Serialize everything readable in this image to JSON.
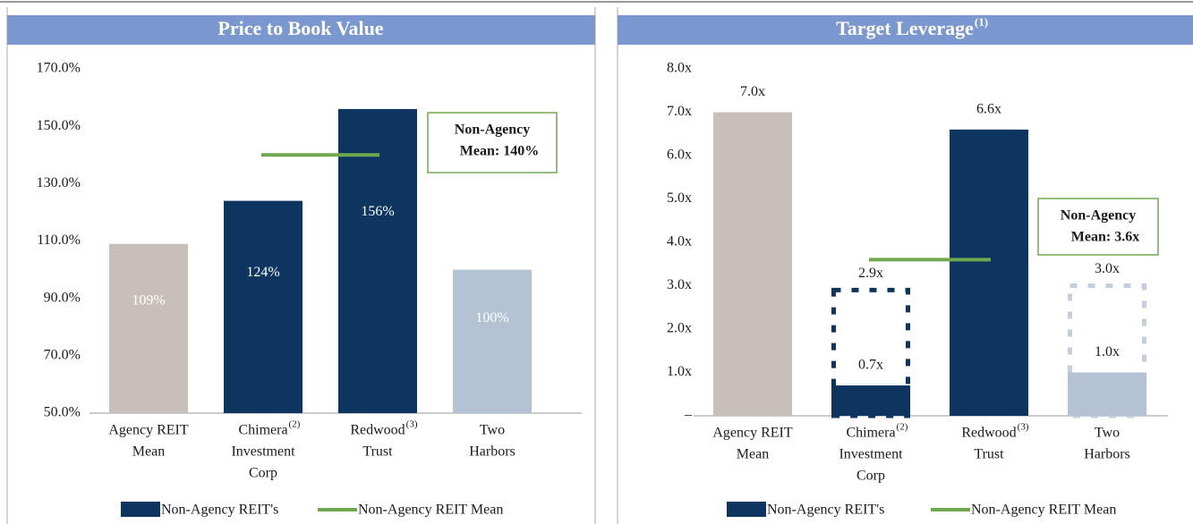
{
  "chart_data": [
    {
      "type": "bar",
      "title": "Price to Book Value",
      "categories": [
        [
          "Agency REIT",
          "Mean"
        ],
        [
          "Chimera",
          "Investment",
          "Corp"
        ],
        [
          "Redwood",
          "Trust"
        ],
        [
          "Two",
          "Harbors"
        ]
      ],
      "category_notes": [
        null,
        "(2)",
        "(3)",
        null
      ],
      "values": [
        109,
        124,
        156,
        100
      ],
      "value_labels": [
        "109%",
        "124%",
        "156%",
        "100%"
      ],
      "value_label_position": "inside",
      "colors": [
        "#c8bfba",
        "#0d3560",
        "#0d3560",
        "#b3c3d4"
      ],
      "mean": 140,
      "mean_color": "#70a850",
      "annotation": [
        "Non-Agency",
        "Mean: 140%"
      ],
      "ylim": [
        50,
        170
      ],
      "yticks": [
        {
          "value": 50,
          "label": "50.0%"
        },
        {
          "value": 70,
          "label": "70.0%"
        },
        {
          "value": 90,
          "label": "90.0%"
        },
        {
          "value": 110,
          "label": "110.0%"
        },
        {
          "value": 130,
          "label": "130.0%"
        },
        {
          "value": 150,
          "label": "150.0%"
        },
        {
          "value": 170,
          "label": "170.0%"
        }
      ],
      "legend": [
        {
          "name": "Non-Agency REIT's",
          "color": "#0d3560",
          "shape": "rect"
        },
        {
          "name": "Non-Agency REIT Mean",
          "color": "#70a850",
          "shape": "line"
        }
      ]
    },
    {
      "type": "bar",
      "title": "Target Leverage",
      "title_note": "(1)",
      "categories": [
        [
          "Agency REIT",
          "Mean"
        ],
        [
          "Chimera",
          "Investment",
          "Corp"
        ],
        [
          "Redwood",
          "Trust"
        ],
        [
          "Two",
          "Harbors"
        ]
      ],
      "category_notes": [
        null,
        "(2)",
        "(3)",
        null
      ],
      "values": [
        7.0,
        0.7,
        6.6,
        1.0
      ],
      "value_labels": [
        "7.0x",
        "0.7x",
        "6.6x",
        "1.0x"
      ],
      "value_label_position": "above",
      "colors": [
        "#c8bfba",
        "#0d3560",
        "#0d3560",
        "#b3c3d4"
      ],
      "high_values": [
        null,
        2.9,
        null,
        3.0
      ],
      "high_value_labels": [
        null,
        "2.9x",
        null,
        "3.0x"
      ],
      "high_colors": [
        null,
        "#0d3560",
        null,
        "#c3cfdc"
      ],
      "mean": 3.6,
      "mean_color": "#70a850",
      "annotation": [
        "Non-Agency",
        "Mean: 3.6x"
      ],
      "ylim": [
        0,
        8
      ],
      "yticks": [
        {
          "value": 0,
          "label": "–"
        },
        {
          "value": 1,
          "label": "1.0x"
        },
        {
          "value": 2,
          "label": "2.0x"
        },
        {
          "value": 3,
          "label": "3.0x"
        },
        {
          "value": 4,
          "label": "4.0x"
        },
        {
          "value": 5,
          "label": "5.0x"
        },
        {
          "value": 6,
          "label": "6.0x"
        },
        {
          "value": 7,
          "label": "7.0x"
        },
        {
          "value": 8,
          "label": "8.0x"
        }
      ],
      "legend": [
        {
          "name": "Non-Agency REIT's",
          "color": "#0d3560",
          "shape": "rect"
        },
        {
          "name": "Non-Agency REIT Mean",
          "color": "#70a850",
          "shape": "line"
        }
      ]
    }
  ]
}
